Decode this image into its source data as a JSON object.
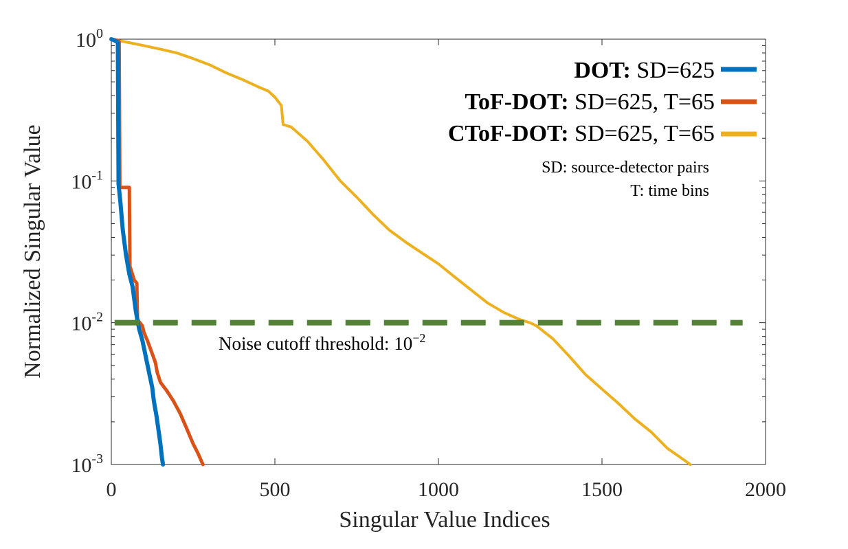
{
  "chart_data": {
    "type": "line",
    "xlabel": "Singular Value Indices",
    "ylabel": "Normalized Singular Value",
    "xlim": [
      0,
      2000
    ],
    "ylim": [
      0.001,
      1
    ],
    "yscale": "log",
    "x_ticks": [
      0,
      500,
      1000,
      1500,
      2000
    ],
    "x_tick_labels": [
      "0",
      "500",
      "1000",
      "1500",
      "2000"
    ],
    "y_ticks": [
      {
        "value": 0.001,
        "base": "10",
        "exp": "-3"
      },
      {
        "value": 0.01,
        "base": "10",
        "exp": "-2"
      },
      {
        "value": 0.1,
        "base": "10",
        "exp": "-1"
      },
      {
        "value": 1,
        "base": "10",
        "exp": "0"
      }
    ],
    "grid": false,
    "legend_position": "top-right",
    "series": [
      {
        "name": "DOT:",
        "detail": "SD=625",
        "color": "#0072BD",
        "points": [
          [
            0,
            1
          ],
          [
            10,
            0.98
          ],
          [
            20,
            0.95
          ],
          [
            22,
            0.095
          ],
          [
            28,
            0.07
          ],
          [
            35,
            0.045
          ],
          [
            45,
            0.03
          ],
          [
            55,
            0.022
          ],
          [
            65,
            0.018
          ],
          [
            75,
            0.012
          ],
          [
            85,
            0.009
          ],
          [
            95,
            0.0075
          ],
          [
            105,
            0.0058
          ],
          [
            115,
            0.0045
          ],
          [
            125,
            0.0035
          ],
          [
            130,
            0.0028
          ],
          [
            138,
            0.0022
          ],
          [
            145,
            0.0017
          ],
          [
            150,
            0.0014
          ],
          [
            155,
            0.0011
          ],
          [
            158,
            0.001
          ]
        ]
      },
      {
        "name": "ToF-DOT:",
        "detail": "SD=625, T=65",
        "color": "#D95319",
        "points": [
          [
            0,
            1
          ],
          [
            10,
            0.99
          ],
          [
            20,
            0.98
          ],
          [
            24,
            0.96
          ],
          [
            26,
            0.09
          ],
          [
            55,
            0.09
          ],
          [
            57,
            0.025
          ],
          [
            70,
            0.02
          ],
          [
            78,
            0.019
          ],
          [
            80,
            0.0105
          ],
          [
            95,
            0.0095
          ],
          [
            100,
            0.0085
          ],
          [
            110,
            0.0075
          ],
          [
            120,
            0.0065
          ],
          [
            128,
            0.0058
          ],
          [
            135,
            0.0052
          ],
          [
            140,
            0.0045
          ],
          [
            150,
            0.0038
          ],
          [
            170,
            0.0033
          ],
          [
            190,
            0.0028
          ],
          [
            210,
            0.0023
          ],
          [
            230,
            0.0018
          ],
          [
            250,
            0.0014
          ],
          [
            265,
            0.0012
          ],
          [
            280,
            0.001
          ]
        ]
      },
      {
        "name": "CToF-DOT:",
        "detail": "SD=625, T=65",
        "color": "#EDB120",
        "points": [
          [
            0,
            1
          ],
          [
            50,
            0.95
          ],
          [
            100,
            0.9
          ],
          [
            150,
            0.85
          ],
          [
            200,
            0.8
          ],
          [
            250,
            0.73
          ],
          [
            300,
            0.66
          ],
          [
            350,
            0.58
          ],
          [
            400,
            0.52
          ],
          [
            450,
            0.46
          ],
          [
            480,
            0.43
          ],
          [
            500,
            0.39
          ],
          [
            520,
            0.34
          ],
          [
            525,
            0.25
          ],
          [
            550,
            0.24
          ],
          [
            600,
            0.19
          ],
          [
            650,
            0.14
          ],
          [
            700,
            0.1
          ],
          [
            750,
            0.077
          ],
          [
            800,
            0.058
          ],
          [
            850,
            0.045
          ],
          [
            900,
            0.037
          ],
          [
            950,
            0.031
          ],
          [
            1000,
            0.026
          ],
          [
            1050,
            0.021
          ],
          [
            1100,
            0.017
          ],
          [
            1150,
            0.0138
          ],
          [
            1200,
            0.0118
          ],
          [
            1250,
            0.0105
          ],
          [
            1280,
            0.01
          ],
          [
            1300,
            0.0095
          ],
          [
            1350,
            0.0077
          ],
          [
            1400,
            0.0058
          ],
          [
            1450,
            0.0043
          ],
          [
            1500,
            0.0034
          ],
          [
            1550,
            0.0027
          ],
          [
            1600,
            0.0021
          ],
          [
            1650,
            0.0017
          ],
          [
            1700,
            0.0013
          ],
          [
            1750,
            0.00108
          ],
          [
            1770,
            0.001
          ]
        ]
      }
    ],
    "threshold": {
      "value": 0.01,
      "color": "#548235",
      "x_start": 10,
      "x_end": 1930
    },
    "annotations": {
      "cutoff_text": "Noise cutoff threshold: ",
      "cutoff_base": "10",
      "cutoff_exp": "−2",
      "note_line1": "SD: source-detector pairs",
      "note_line2": "T: time bins"
    }
  }
}
